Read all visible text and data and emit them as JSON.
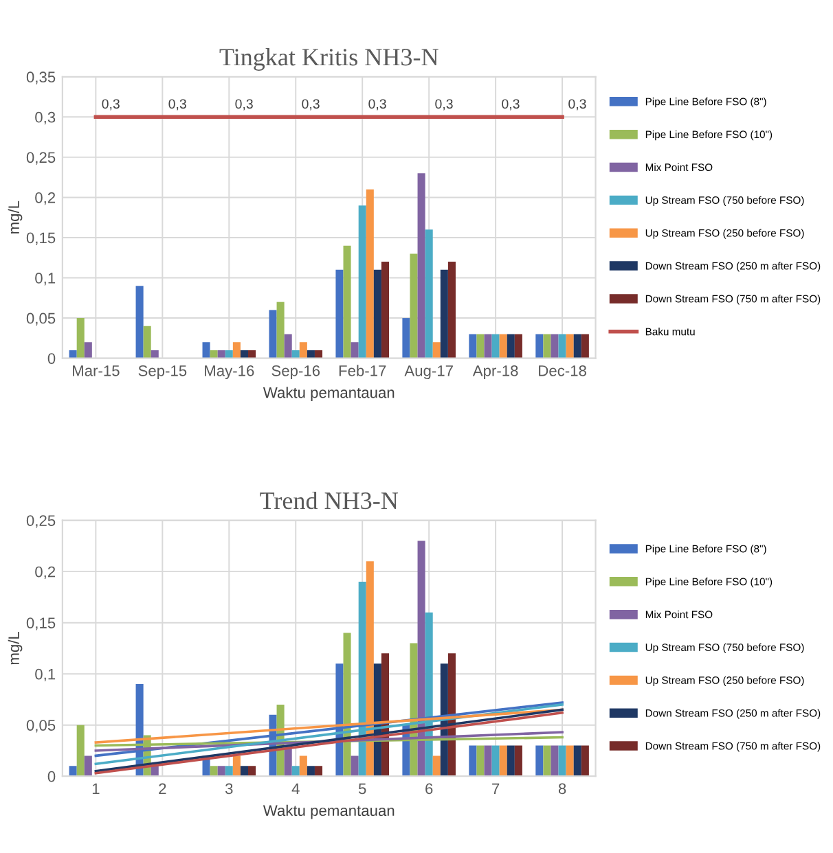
{
  "chart_data": [
    {
      "type": "bar",
      "title": "Tingkat Kritis NH3-N",
      "xlabel": "Waktu pemantauan",
      "ylabel": "mg/L",
      "categories": [
        "Mar-15",
        "Sep-15",
        "May-16",
        "Sep-16",
        "Feb-17",
        "Aug-17",
        "Apr-18",
        "Dec-18"
      ],
      "ylim": [
        0,
        0.35
      ],
      "yticks": [
        {
          "value": 0,
          "label": "0"
        },
        {
          "value": 0.05,
          "label": "0,05"
        },
        {
          "value": 0.1,
          "label": "0,1"
        },
        {
          "value": 0.15,
          "label": "0,15"
        },
        {
          "value": 0.2,
          "label": "0,2"
        },
        {
          "value": 0.25,
          "label": "0,25"
        },
        {
          "value": 0.3,
          "label": "0,3"
        },
        {
          "value": 0.35,
          "label": "0,35"
        }
      ],
      "grid": true,
      "legend": "right",
      "series": [
        {
          "name": "Pipe Line Before FSO (8\")",
          "color": "#4472c4",
          "values": [
            0.01,
            0.09,
            0.02,
            0.06,
            0.11,
            0.05,
            0.03,
            0.03
          ]
        },
        {
          "name": "Pipe Line Before FSO (10\")",
          "color": "#9bbb59",
          "values": [
            0.05,
            0.04,
            0.01,
            0.07,
            0.14,
            0.13,
            0.03,
            0.03
          ]
        },
        {
          "name": "Mix Point FSO",
          "color": "#8064a2",
          "values": [
            0.02,
            0.01,
            0.01,
            0.03,
            0.02,
            0.23,
            0.03,
            0.03
          ]
        },
        {
          "name": "Up Stream FSO (750 before FSO)",
          "color": "#4bacc6",
          "values": [
            null,
            null,
            0.01,
            0.01,
            0.19,
            0.16,
            0.03,
            0.03
          ]
        },
        {
          "name": "Up Stream FSO (250 before FSO)",
          "color": "#f79646",
          "values": [
            null,
            null,
            0.02,
            0.02,
            0.21,
            0.02,
            0.03,
            0.03
          ]
        },
        {
          "name": "Down Stream FSO (250 m after FSO)",
          "color": "#1f3864",
          "values": [
            null,
            null,
            0.01,
            0.01,
            0.11,
            0.11,
            0.03,
            0.03
          ]
        },
        {
          "name": "Down Stream FSO (750 m after FSO)",
          "color": "#772c2a",
          "values": [
            null,
            null,
            0.01,
            0.01,
            0.12,
            0.12,
            0.03,
            0.03
          ]
        },
        {
          "name": "Baku mutu",
          "type": "line",
          "color": "#c0504d",
          "values": [
            0.3,
            0.3,
            0.3,
            0.3,
            0.3,
            0.3,
            0.3,
            0.3
          ],
          "value_labels": [
            "0,3",
            "0,3",
            "0,3",
            "0,3",
            "0,3",
            "0,3",
            "0,3",
            "0,3"
          ]
        }
      ]
    },
    {
      "type": "bar",
      "title": "Trend NH3-N",
      "xlabel": "Waktu pemantauan",
      "ylabel": "mg/L",
      "categories": [
        "1",
        "2",
        "3",
        "4",
        "5",
        "6",
        "7",
        "8"
      ],
      "ylim": [
        0,
        0.25
      ],
      "yticks": [
        {
          "value": 0,
          "label": "0"
        },
        {
          "value": 0.05,
          "label": "0,05"
        },
        {
          "value": 0.1,
          "label": "0,1"
        },
        {
          "value": 0.15,
          "label": "0,15"
        },
        {
          "value": 0.2,
          "label": "0,2"
        },
        {
          "value": 0.25,
          "label": "0,25"
        }
      ],
      "grid": true,
      "legend": "right",
      "series": [
        {
          "name": "Pipe Line Before FSO (8\")",
          "color": "#4472c4",
          "values": [
            0.01,
            0.09,
            0.02,
            0.06,
            0.11,
            0.05,
            0.03,
            0.03
          ]
        },
        {
          "name": "Pipe Line Before FSO (10\")",
          "color": "#9bbb59",
          "values": [
            0.05,
            0.04,
            0.01,
            0.07,
            0.14,
            0.13,
            0.03,
            0.03
          ]
        },
        {
          "name": "Mix Point FSO",
          "color": "#8064a2",
          "values": [
            0.02,
            0.01,
            0.01,
            0.03,
            0.02,
            0.23,
            0.03,
            0.03
          ]
        },
        {
          "name": "Up Stream FSO (750 before FSO)",
          "color": "#4bacc6",
          "values": [
            null,
            null,
            0.01,
            0.01,
            0.19,
            0.16,
            0.03,
            0.03
          ]
        },
        {
          "name": "Up Stream FSO (250 before FSO)",
          "color": "#f79646",
          "values": [
            null,
            null,
            0.02,
            0.02,
            0.21,
            0.02,
            0.03,
            0.03
          ]
        },
        {
          "name": "Down Stream FSO (250 m after FSO)",
          "color": "#1f3864",
          "values": [
            null,
            null,
            0.01,
            0.01,
            0.11,
            0.11,
            0.03,
            0.03
          ]
        },
        {
          "name": "Down Stream FSO (750 m after FSO)",
          "color": "#772c2a",
          "values": [
            null,
            null,
            0.01,
            0.01,
            0.12,
            0.12,
            0.03,
            0.03
          ]
        },
        {
          "type": "line",
          "color": "#4472c4",
          "x": [
            "1",
            "8"
          ],
          "values": [
            0.02,
            0.072
          ]
        },
        {
          "type": "line",
          "color": "#9bbb59",
          "x": [
            "1",
            "8"
          ],
          "values": [
            0.03,
            0.038
          ]
        },
        {
          "type": "line",
          "color": "#8064a2",
          "x": [
            "1",
            "8"
          ],
          "values": [
            0.025,
            0.043
          ]
        },
        {
          "type": "line",
          "color": "#4bacc6",
          "x": [
            "1",
            "8"
          ],
          "values": [
            0.012,
            0.07
          ]
        },
        {
          "type": "line",
          "color": "#f79646",
          "x": [
            "1",
            "8"
          ],
          "values": [
            0.033,
            0.065
          ]
        },
        {
          "type": "line",
          "color": "#1f3864",
          "x": [
            "1",
            "8"
          ],
          "values": [
            0.005,
            0.065
          ]
        },
        {
          "type": "line",
          "color": "#c0504d",
          "x": [
            "1",
            "8"
          ],
          "values": [
            0.003,
            0.062
          ]
        }
      ]
    }
  ]
}
